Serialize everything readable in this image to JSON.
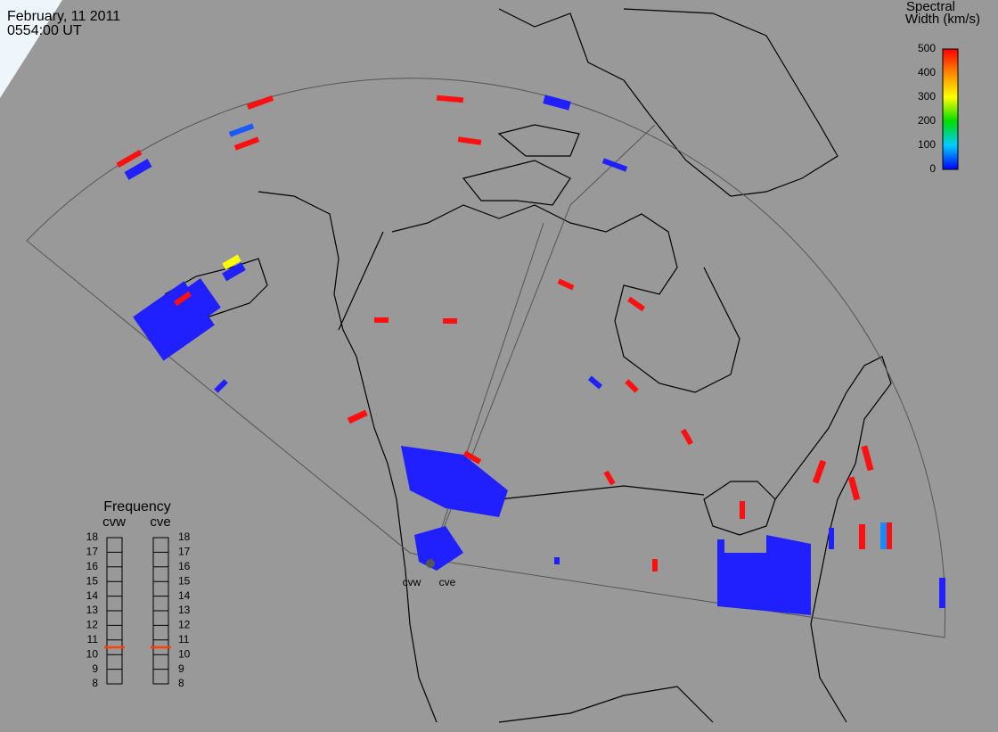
{
  "header": {
    "date": "February, 11 2011",
    "time": "0554:00 UT"
  },
  "colorbar": {
    "title": [
      "Spectral",
      "Width (km/s)"
    ],
    "ticks": [
      0,
      100,
      200,
      300,
      400,
      500
    ]
  },
  "frequency": {
    "title": "Frequency",
    "radars": [
      {
        "name": "cvw",
        "value": 10.5
      },
      {
        "name": "cve",
        "value": 10.5
      }
    ],
    "ticks": [
      8,
      9,
      10,
      11,
      12,
      13,
      14,
      15,
      16,
      17,
      18
    ]
  },
  "stations": [
    "cvw",
    "cve"
  ]
}
